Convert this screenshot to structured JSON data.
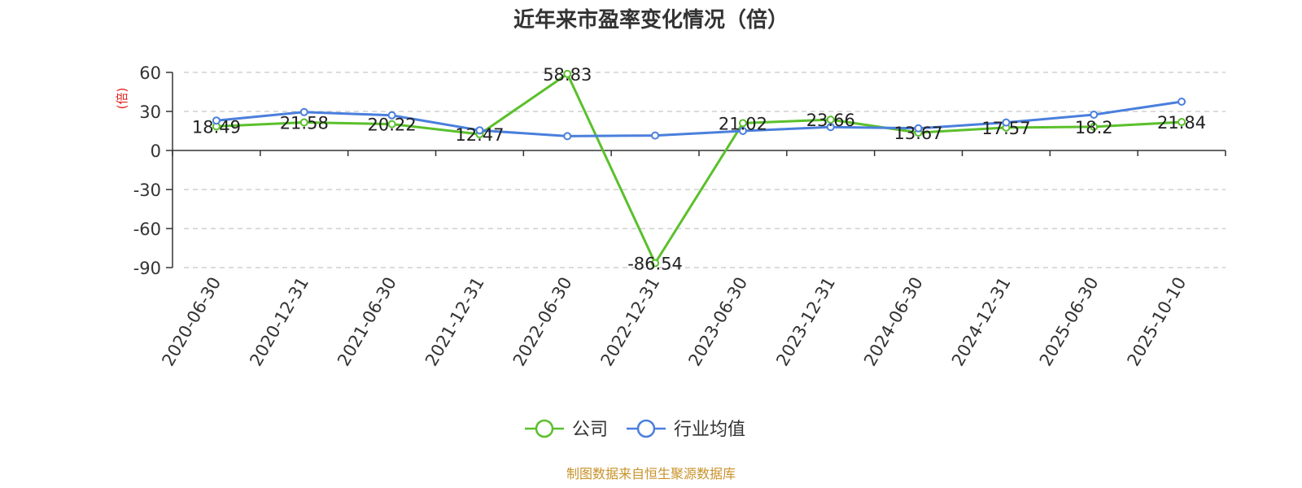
{
  "chart_data": {
    "type": "line",
    "title": "近年来市盈率变化情况（倍）",
    "ylabel": "(倍)",
    "xlabel": "",
    "ylim": [
      -90,
      60
    ],
    "yticks": [
      60,
      30,
      0,
      -30,
      -60,
      -90
    ],
    "ytick_labels": [
      "60",
      "30",
      "0",
      "-30",
      "-60",
      "-90"
    ],
    "grid": true,
    "legend_position": "bottom",
    "categories": [
      "2020-06-30",
      "2020-12-31",
      "2021-06-30",
      "2021-12-31",
      "2022-06-30",
      "2022-12-31",
      "2023-06-30",
      "2023-12-31",
      "2024-06-30",
      "2024-12-31",
      "2025-06-30",
      "2025-10-10"
    ],
    "series": [
      {
        "name": "公司",
        "color": "#5ac02b",
        "values": [
          18.49,
          21.58,
          20.22,
          12.47,
          58.83,
          -86.54,
          21.02,
          23.66,
          13.67,
          17.57,
          18.2,
          21.84
        ],
        "labels": [
          "18.49",
          "21.58",
          "20.22",
          "12.47",
          "58.83",
          "-86.54",
          "21.02",
          "23.66",
          "13.67",
          "17.57",
          "18.2",
          "21.84"
        ]
      },
      {
        "name": "行业均值",
        "color": "#4a7fdc",
        "values": [
          23.0,
          29.5,
          27.0,
          15.5,
          11.0,
          11.5,
          15.0,
          18.0,
          17.0,
          21.5,
          27.5,
          37.5
        ]
      }
    ],
    "source": "制图数据来自恒生聚源数据库",
    "source_color": "#c8922a",
    "ylabel_color": "#e0201c"
  }
}
